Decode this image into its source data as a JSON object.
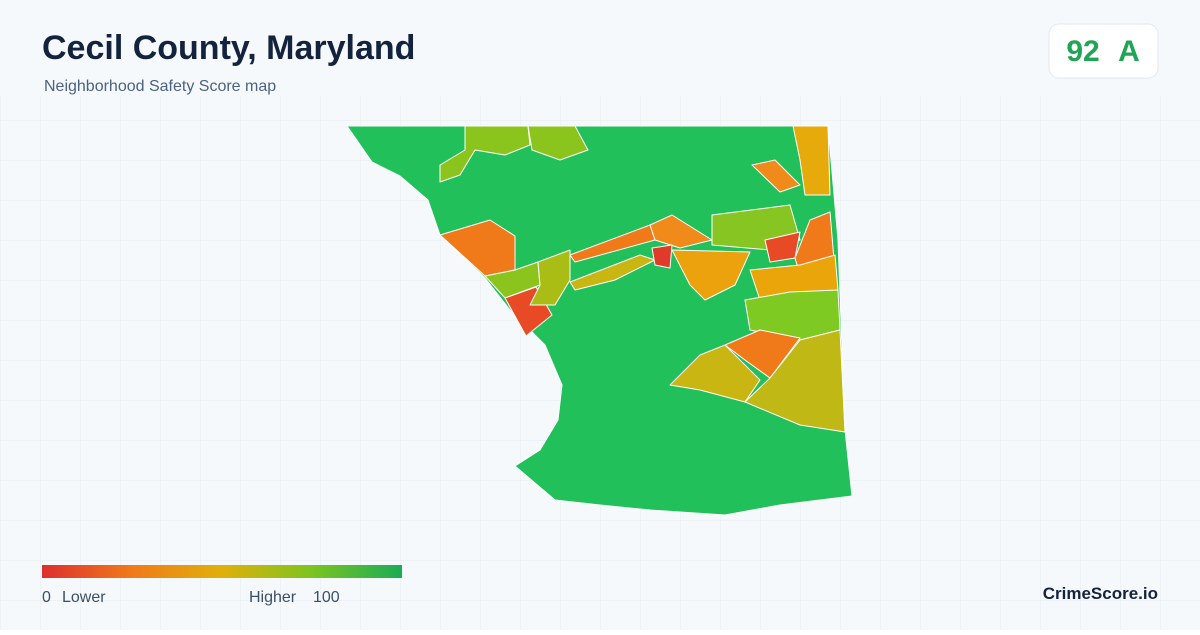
{
  "header": {
    "title": "Cecil County, Maryland",
    "subtitle": "Neighborhood Safety Score map"
  },
  "score": {
    "value": 92,
    "grade": "A"
  },
  "legend": {
    "min": 0,
    "min_label": "Lower",
    "max_label": "Higher",
    "max": 100
  },
  "brand": "CrimeScore.io"
}
